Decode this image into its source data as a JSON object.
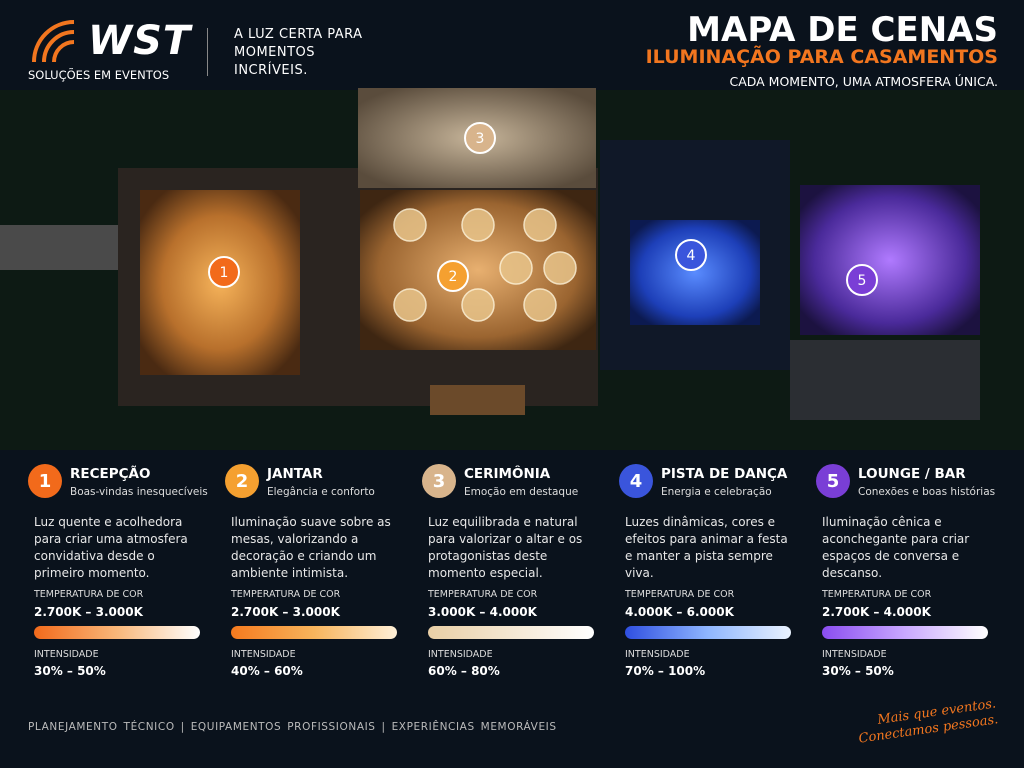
{
  "header": {
    "brand": "WST",
    "brand_sub": "SOLUÇÕES EM EVENTOS",
    "tagline": "A LUZ CERTA PARA MOMENTOS INCRÍVEIS.",
    "title": "MAPA DE CENAS",
    "subtitle": "ILUMINAÇÃO PARA CASAMENTOS",
    "motto": "CADA MOMENTO, UMA ATMOSFERA ÚNICA."
  },
  "cards": [
    {
      "number": "1",
      "title": "RECEPÇÃO",
      "subtitle": "Boas-vindas inesquecíveis",
      "description": "Luz quente e acolhedora para criar uma atmosfera convidativa desde o primeiro momento.",
      "temp_label": "TEMPERATURA DE COR",
      "temp": "2.700K – 3.000K",
      "int_label": "INTENSIDADE",
      "intensity": "30% – 50%"
    },
    {
      "number": "2",
      "title": "JANTAR",
      "subtitle": "Elegância e conforto",
      "description": "Iluminação suave sobre as mesas, valorizando a decoração e criando um ambiente intimista.",
      "temp_label": "TEMPERATURA DE COR",
      "temp": "2.700K – 3.000K",
      "int_label": "INTENSIDADE",
      "intensity": "40% – 60%"
    },
    {
      "number": "3",
      "title": "CERIMÔNIA",
      "subtitle": "Emoção em destaque",
      "description": "Luz equilibrada e natural para valorizar o altar e os protagonistas deste momento especial.",
      "temp_label": "TEMPERATURA DE COR",
      "temp": "3.000K – 4.000K",
      "int_label": "INTENSIDADE",
      "intensity": "60% – 80%"
    },
    {
      "number": "4",
      "title": "PISTA DE DANÇA",
      "subtitle": "Energia e celebração",
      "description": "Luzes dinâmicas, cores e efeitos para animar a festa e manter a pista sempre viva.",
      "temp_label": "TEMPERATURA DE COR",
      "temp": "4.000K – 6.000K",
      "int_label": "INTENSIDADE",
      "intensity": "70% – 100%"
    },
    {
      "number": "5",
      "title": "LOUNGE / BAR",
      "subtitle": "Conexões e boas histórias",
      "description": "Iluminação cênica e aconchegante para criar espaços de conversa e descanso.",
      "temp_label": "TEMPERATURA DE COR",
      "temp": "2.700K – 4.000K",
      "int_label": "INTENSIDADE",
      "intensity": "30% – 50%"
    }
  ],
  "footer": {
    "links": "PLANEJAMENTO TÉCNICO  |  EQUIPAMENTOS PROFISSIONAIS  |  EXPERIÊNCIAS MEMORÁVEIS",
    "signature_1": "Mais que eventos.",
    "signature_2": "Conectamos pessoas."
  }
}
